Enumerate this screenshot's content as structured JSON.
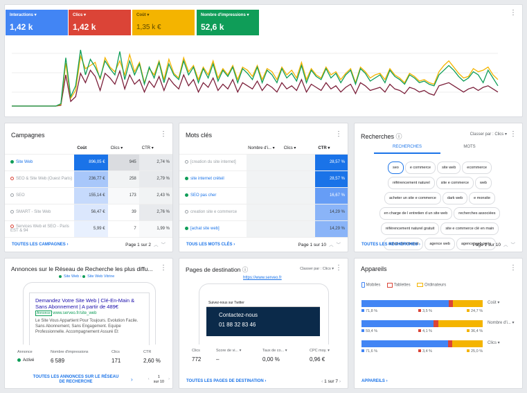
{
  "metrics": [
    {
      "label": "Interactions",
      "value": "1,42 k",
      "color": "#4285f4"
    },
    {
      "label": "Clics",
      "value": "1,42 k",
      "color": "#db4437"
    },
    {
      "label": "Coût",
      "value": "1,35 k €",
      "color": "#f4b400"
    },
    {
      "label": "Nombre d'impressions",
      "value": "52,6 k",
      "color": "#0f9d58"
    }
  ],
  "campagnes": {
    "title": "Campagnes",
    "headers": [
      "Coût",
      "Clics",
      "CTR"
    ],
    "rows": [
      {
        "name": "Site Web",
        "cost": "896,05 €",
        "clicks": "945",
        "ctr": "2,74 %",
        "status": "green"
      },
      {
        "name": "SEO & Site Web (Ouest Paris)",
        "cost": "236,77 €",
        "clicks": "258",
        "ctr": "2,79 %",
        "status": "red"
      },
      {
        "name": "SEO",
        "cost": "155,14 €",
        "clicks": "173",
        "ctr": "2,43 %",
        "status": "grey"
      },
      {
        "name": "SMART - Site Web",
        "cost": "56,47 €",
        "clicks": "39",
        "ctr": "2,76 %",
        "status": "grey"
      },
      {
        "name": "Services Web et SEO - Paris EST & 94",
        "cost": "5,99 €",
        "clicks": "7",
        "ctr": "1,99 %",
        "status": "red"
      }
    ],
    "footer": "TOUTES LES CAMPAGNES",
    "pager": "Page 1 sur 2"
  },
  "motscles": {
    "title": "Mots clés",
    "headers": [
      "Nombre d'i...",
      "Clics",
      "CTR"
    ],
    "rows": [
      {
        "name": "[creation du site internet]",
        "ctr": "28,57 %",
        "status": "grey"
      },
      {
        "name": "site internet créteil",
        "ctr": "28,57 %",
        "status": "green"
      },
      {
        "name": "SEO pas cher",
        "ctr": "16,67 %",
        "status": "green"
      },
      {
        "name": "creation site e commerce",
        "ctr": "14,29 %",
        "status": "grey"
      },
      {
        "name": "[achat site web]",
        "ctr": "14,29 %",
        "status": "green"
      }
    ],
    "footer": "TOUS LES MOTS CLÉS",
    "pager": "Page 1 sur 10"
  },
  "recherches": {
    "title": "Recherches",
    "sort_label": "Classer par :",
    "sort_value": "Clics",
    "tabs": [
      "RECHERCHES",
      "MOTS"
    ],
    "chips": [
      [
        "seo",
        "e commerce",
        "site web",
        "ecommerce"
      ],
      [
        "référencement naturel",
        "site e commerce",
        "web"
      ],
      [
        "acheter un site e commerce",
        "dark web",
        "e monsite"
      ],
      [
        "en charge de l entretien d un site web",
        "recherches associées"
      ],
      [
        "référencement naturel gratuit",
        "site e commerce clé en main"
      ],
      [
        "achat site internet",
        "agence web",
        "agence web paris"
      ]
    ],
    "footer": "TOUTES LES RECHERCHES",
    "pager": "Page 1 sur 10"
  },
  "annonces": {
    "title": "Annonces sur le Réseau de Recherche les plus diffu...",
    "legend": [
      "Site Web",
      "Site Web Vitrine"
    ],
    "ad_headline": "Demandez Votre Site Web | Clé-En-Main & Sans Abonnement | A partir de 489€",
    "ad_badge": "Annonce",
    "ad_url": "www.serveo.fr/site_web",
    "ad_desc": "Le Site Vous Appartient Pour Toujours. Evolution Facile. Sans Abonnement, Sans Engagement. Equipe Professionnelle. Accompagnement Assuré Et",
    "stat_labels": [
      "Annonce",
      "Nombre d'impressions",
      "Clics",
      "CTR"
    ],
    "stat_values": [
      "Activé",
      "6 589",
      "171",
      "2,60 %"
    ],
    "footer": "TOUTES LES ANNONCES SUR LE RÉSEAU DE RECHERCHE",
    "pager_a": "1",
    "pager_b": "sur 10"
  },
  "pages": {
    "title": "Pages de destination",
    "sort_label": "Classer par :",
    "sort_value": "Clics",
    "url": "https://www.serveo.fr",
    "preview_top": "Suivez-nous sur Twitter",
    "preview_contact": "Contactez-nous",
    "preview_phone": "01 88 32 83 46",
    "stat_labels": [
      "Clics",
      "Score de vi...",
      "Taux de co...",
      "CPC moy."
    ],
    "stat_values": [
      "772",
      "–",
      "0,00 %",
      "0,96 €"
    ],
    "footer": "TOUTES LES PAGES DE DESTINATION",
    "pager": "1 sur 7"
  },
  "appareils": {
    "title": "Appareils",
    "legend": [
      "Mobiles",
      "Tablettes",
      "Ordinateurs"
    ],
    "colors": [
      "#4285f4",
      "#db4437",
      "#f4b400"
    ],
    "rows": [
      {
        "label": "Coût",
        "values": [
          71.8,
          3.5,
          24.7
        ],
        "texts": [
          "71,8 %",
          "3,5 %",
          "24,7 %"
        ]
      },
      {
        "label": "Nombre d'i...",
        "values": [
          59.4,
          4.1,
          36.4
        ],
        "texts": [
          "59,4 %",
          "4,1 %",
          "36,4 %"
        ]
      },
      {
        "label": "Clics",
        "values": [
          71.6,
          3.4,
          25.0
        ],
        "texts": [
          "71,6 %",
          "3,4 %",
          "25,0 %"
        ]
      }
    ],
    "footer": "APPAREILS"
  },
  "chart_data": {
    "type": "line",
    "series": [
      {
        "name": "Clics",
        "color": "#7b1f3a",
        "values": [
          0,
          0,
          0,
          0,
          0,
          0,
          0,
          0,
          0,
          0,
          1,
          40,
          6,
          12,
          42,
          30,
          46,
          38,
          20,
          42,
          36,
          28,
          45,
          22,
          40,
          28,
          34,
          18,
          32,
          24,
          38,
          20,
          36,
          28,
          22,
          40,
          26,
          34,
          18,
          30,
          24,
          36,
          20,
          28,
          22,
          34,
          18,
          30,
          26,
          22,
          32,
          20,
          28,
          24,
          18,
          30,
          22,
          26,
          20,
          34,
          18,
          28,
          24,
          20,
          30,
          22,
          26,
          18,
          24,
          28,
          16,
          30,
          26,
          20,
          22,
          24,
          18,
          28,
          22,
          20,
          16,
          24,
          22,
          18,
          20,
          16,
          14,
          26,
          28,
          30,
          26,
          22,
          18,
          22,
          24,
          20,
          24,
          26,
          22,
          18
        ]
      },
      {
        "name": "Coût",
        "color": "#f4b400",
        "values": [
          0,
          0,
          0,
          0,
          0,
          0,
          0,
          0,
          0,
          0,
          2,
          55,
          10,
          20,
          64,
          48,
          52,
          56,
          34,
          62,
          50,
          44,
          58,
          40,
          66,
          44,
          56,
          30,
          48,
          40,
          58,
          34,
          60,
          42,
          36,
          62,
          44,
          52,
          34,
          50,
          40,
          58,
          36,
          48,
          40,
          52,
          34,
          50,
          46,
          38,
          52,
          34,
          48,
          44,
          34,
          50,
          40,
          46,
          36,
          56,
          34,
          48,
          40,
          36,
          50,
          40,
          44,
          34,
          42,
          48,
          30,
          50,
          44,
          36,
          40,
          42,
          34,
          48,
          40,
          36,
          30,
          42,
          38,
          32,
          34,
          30,
          28,
          44,
          52,
          58,
          50,
          42,
          36,
          38,
          48,
          44,
          46,
          50,
          40,
          34
        ]
      },
      {
        "name": "Nombre d'impressions",
        "color": "#0f9d58",
        "values": [
          0,
          0,
          0,
          0,
          0,
          0,
          0,
          0,
          0,
          0,
          3,
          62,
          12,
          26,
          72,
          40,
          60,
          50,
          36,
          58,
          48,
          40,
          70,
          34,
          58,
          40,
          54,
          28,
          50,
          36,
          56,
          30,
          54,
          40,
          34,
          58,
          40,
          50,
          30,
          48,
          36,
          54,
          32,
          46,
          38,
          50,
          30,
          48,
          42,
          34,
          50,
          30,
          46,
          40,
          30,
          48,
          36,
          42,
          32,
          52,
          30,
          46,
          38,
          34,
          48,
          36,
          42,
          30,
          40,
          46,
          28,
          48,
          42,
          32,
          36,
          40,
          30,
          46,
          38,
          34,
          28,
          40,
          36,
          30,
          32,
          28,
          26,
          40,
          46,
          52,
          46,
          38,
          32,
          36,
          44,
          40,
          30,
          46,
          36,
          26
        ]
      }
    ]
  }
}
